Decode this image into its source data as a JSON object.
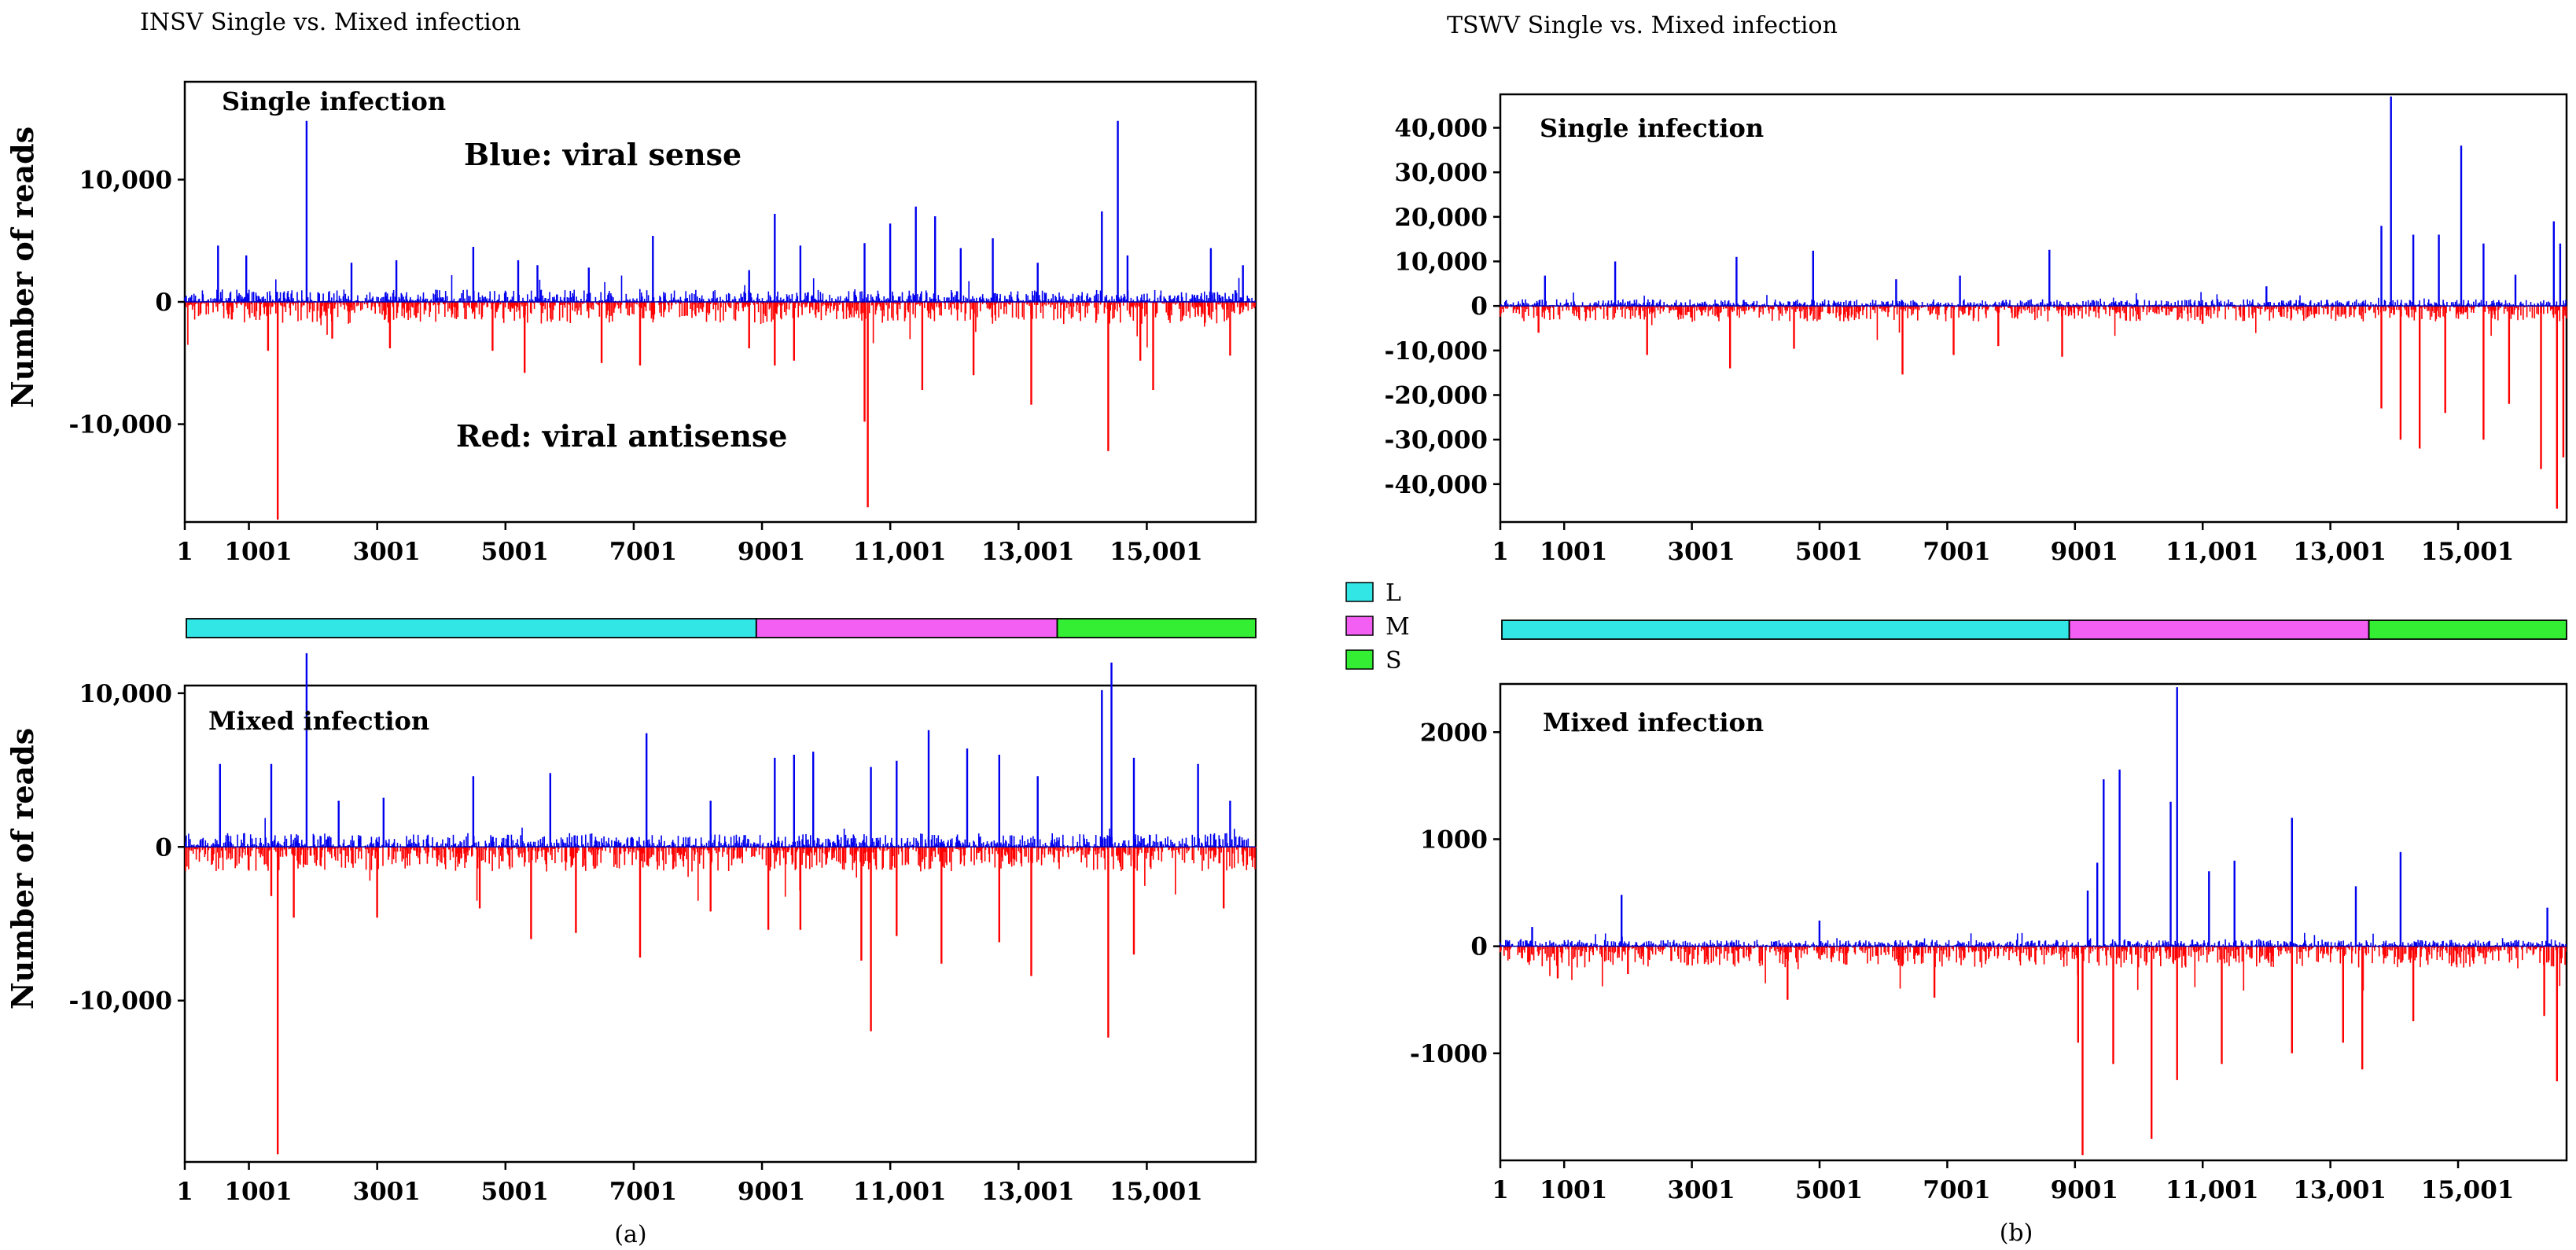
{
  "figure": {
    "left_title": "INSV Single vs. Mixed infection",
    "right_title": "TSWV Single vs. Mixed infection",
    "left_sublabel": "(a)",
    "right_sublabel": "(b)",
    "ylabel": "Number of reads"
  },
  "colors": {
    "sense": "#0000ee",
    "antisense": "#ff0000",
    "L": "#33e6e6",
    "M": "#f25ff2",
    "S": "#33ee33",
    "frame": "#000000"
  },
  "segment_legend": [
    {
      "key": "L",
      "label": "L"
    },
    {
      "key": "M",
      "label": "M"
    },
    {
      "key": "S",
      "label": "S"
    }
  ],
  "chart_data": [
    {
      "id": "insv-single",
      "type": "bar",
      "panel_label": "Single infection",
      "annotations": [
        "Blue: viral sense",
        "Red: viral antisense"
      ],
      "xlabel": "",
      "ylabel": "Number of reads",
      "xlim": [
        1,
        16700
      ],
      "ylim": [
        -18000,
        18000
      ],
      "xticks": [
        1,
        1001,
        3001,
        5001,
        7001,
        9001,
        11001,
        13001,
        15001
      ],
      "xtick_labels": [
        "1",
        "1001",
        "3001",
        "5001",
        "7001",
        "9001",
        "11,001",
        "13,001",
        "15,001"
      ],
      "yticks": [
        10000,
        0,
        -10000
      ],
      "ytick_labels": [
        "10,000",
        "0",
        "-10,000"
      ],
      "segments": [
        {
          "name": "L",
          "start": 1,
          "end": 8900
        },
        {
          "name": "M",
          "start": 8900,
          "end": 13600
        },
        {
          "name": "S",
          "start": 13600,
          "end": 16700
        }
      ],
      "series": [
        {
          "name": "viral sense",
          "points": [
            [
              520,
              4600
            ],
            [
              960,
              3800
            ],
            [
              1900,
              14800
            ],
            [
              2600,
              3200
            ],
            [
              3300,
              3400
            ],
            [
              4500,
              4500
            ],
            [
              5200,
              3400
            ],
            [
              5500,
              3000
            ],
            [
              6300,
              2800
            ],
            [
              7300,
              5400
            ],
            [
              8800,
              2600
            ],
            [
              9200,
              7200
            ],
            [
              9600,
              4600
            ],
            [
              10600,
              4800
            ],
            [
              11000,
              6400
            ],
            [
              11400,
              7800
            ],
            [
              11700,
              7000
            ],
            [
              12100,
              4400
            ],
            [
              12600,
              5200
            ],
            [
              13300,
              3200
            ],
            [
              14300,
              7400
            ],
            [
              14550,
              14800
            ],
            [
              14700,
              3800
            ],
            [
              16000,
              4400
            ],
            [
              16500,
              3000
            ]
          ],
          "baseline_peak": 1000
        },
        {
          "name": "viral antisense",
          "points": [
            [
              1450,
              -17800
            ],
            [
              1300,
              -4000
            ],
            [
              2300,
              -3000
            ],
            [
              3200,
              -3800
            ],
            [
              4800,
              -4000
            ],
            [
              5300,
              -5800
            ],
            [
              6500,
              -5000
            ],
            [
              7100,
              -5200
            ],
            [
              8800,
              -3800
            ],
            [
              9200,
              -5200
            ],
            [
              9500,
              -4800
            ],
            [
              10600,
              -9800
            ],
            [
              10650,
              -16800
            ],
            [
              11500,
              -7200
            ],
            [
              12300,
              -6000
            ],
            [
              13200,
              -8400
            ],
            [
              14400,
              -12200
            ],
            [
              14900,
              -4800
            ],
            [
              15100,
              -7200
            ],
            [
              16300,
              -4400
            ]
          ],
          "baseline_peak": 1800
        }
      ]
    },
    {
      "id": "insv-mixed",
      "type": "bar",
      "panel_label": "Mixed infection",
      "xlabel": "",
      "ylabel": "Number of reads",
      "xlim": [
        1,
        16700
      ],
      "ylim": [
        -20500,
        10500
      ],
      "xticks": [
        1,
        1001,
        3001,
        5001,
        7001,
        9001,
        11001,
        13001,
        15001
      ],
      "xtick_labels": [
        "1",
        "1001",
        "3001",
        "5001",
        "7001",
        "9001",
        "11,001",
        "13,001",
        "15,001"
      ],
      "yticks": [
        10000,
        0,
        -10000
      ],
      "ytick_labels": [
        "10,000",
        "0",
        "-10,000"
      ],
      "segments": [
        {
          "name": "L",
          "start": 1,
          "end": 8900
        },
        {
          "name": "M",
          "start": 8900,
          "end": 13600
        },
        {
          "name": "S",
          "start": 13600,
          "end": 16700
        }
      ],
      "series": [
        {
          "name": "viral sense",
          "points": [
            [
              550,
              5400
            ],
            [
              1350,
              5400
            ],
            [
              1900,
              12600
            ],
            [
              2400,
              3000
            ],
            [
              3100,
              3200
            ],
            [
              4500,
              4600
            ],
            [
              5700,
              4800
            ],
            [
              7200,
              7400
            ],
            [
              8200,
              3000
            ],
            [
              9200,
              5800
            ],
            [
              9500,
              6000
            ],
            [
              9800,
              6200
            ],
            [
              10700,
              5200
            ],
            [
              11100,
              5600
            ],
            [
              11600,
              7600
            ],
            [
              12200,
              6400
            ],
            [
              12700,
              6000
            ],
            [
              13300,
              4600
            ],
            [
              14300,
              10200
            ],
            [
              14450,
              12000
            ],
            [
              14800,
              5800
            ],
            [
              15800,
              5400
            ],
            [
              16300,
              3000
            ]
          ],
          "baseline_peak": 900
        },
        {
          "name": "viral antisense",
          "points": [
            [
              1450,
              -20000
            ],
            [
              1350,
              -3200
            ],
            [
              1700,
              -4600
            ],
            [
              3000,
              -4600
            ],
            [
              4600,
              -4000
            ],
            [
              5400,
              -6000
            ],
            [
              6100,
              -5600
            ],
            [
              7100,
              -7200
            ],
            [
              8200,
              -4200
            ],
            [
              9100,
              -5400
            ],
            [
              9600,
              -5400
            ],
            [
              10550,
              -7400
            ],
            [
              10700,
              -12000
            ],
            [
              11100,
              -5800
            ],
            [
              11800,
              -7600
            ],
            [
              12700,
              -6200
            ],
            [
              13200,
              -8400
            ],
            [
              14400,
              -12400
            ],
            [
              14800,
              -7000
            ],
            [
              16200,
              -4000
            ]
          ],
          "baseline_peak": 1600
        }
      ]
    },
    {
      "id": "tswv-single",
      "type": "bar",
      "panel_label": "Single infection",
      "xlabel": "",
      "ylabel": "",
      "xlim": [
        1,
        16700
      ],
      "ylim": [
        -48500,
        47500
      ],
      "xticks": [
        1,
        1001,
        3001,
        5001,
        7001,
        9001,
        11001,
        13001,
        15001
      ],
      "xtick_labels": [
        "1",
        "1001",
        "3001",
        "5001",
        "7001",
        "9001",
        "11,001",
        "13,001",
        "15,001"
      ],
      "yticks": [
        40000,
        30000,
        20000,
        10000,
        0,
        -10000,
        -20000,
        -30000,
        -40000
      ],
      "ytick_labels": [
        "40,000",
        "30,000",
        "20,000",
        "10,000",
        "0",
        "-10,000",
        "-20,000",
        "-30,000",
        "-40,000"
      ],
      "segments": [
        {
          "name": "L",
          "start": 1,
          "end": 8900
        },
        {
          "name": "M",
          "start": 8900,
          "end": 13600
        },
        {
          "name": "S",
          "start": 13600,
          "end": 16700
        }
      ],
      "series": [
        {
          "name": "viral sense",
          "points": [
            [
              700,
              6800
            ],
            [
              1800,
              10000
            ],
            [
              3700,
              11000
            ],
            [
              4900,
              12400
            ],
            [
              6200,
              6000
            ],
            [
              7200,
              6800
            ],
            [
              8600,
              12600
            ],
            [
              12000,
              4400
            ],
            [
              13800,
              18000
            ],
            [
              13950,
              47000
            ],
            [
              14300,
              16000
            ],
            [
              14700,
              16000
            ],
            [
              15050,
              36000
            ],
            [
              15400,
              14000
            ],
            [
              15900,
              7000
            ],
            [
              16500,
              19000
            ],
            [
              16600,
              14000
            ]
          ],
          "baseline_peak": 1500
        },
        {
          "name": "viral antisense",
          "points": [
            [
              600,
              -6000
            ],
            [
              2300,
              -11000
            ],
            [
              3600,
              -14000
            ],
            [
              4600,
              -9600
            ],
            [
              6300,
              -15400
            ],
            [
              7100,
              -11000
            ],
            [
              7800,
              -9000
            ],
            [
              8800,
              -11400
            ],
            [
              11000,
              -4000
            ],
            [
              13800,
              -23000
            ],
            [
              14100,
              -30000
            ],
            [
              14400,
              -32000
            ],
            [
              14800,
              -24000
            ],
            [
              15400,
              -30000
            ],
            [
              15800,
              -22000
            ],
            [
              16300,
              -36600
            ],
            [
              16550,
              -45500
            ],
            [
              16650,
              -34000
            ]
          ],
          "baseline_peak": 3500
        }
      ]
    },
    {
      "id": "tswv-mixed",
      "type": "bar",
      "panel_label": "Mixed infection",
      "xlabel": "",
      "ylabel": "",
      "xlim": [
        1,
        16700
      ],
      "ylim": [
        -2000,
        2450
      ],
      "xticks": [
        1,
        1001,
        3001,
        5001,
        7001,
        9001,
        11001,
        13001,
        15001
      ],
      "xtick_labels": [
        "1",
        "1001",
        "3001",
        "5001",
        "7001",
        "9001",
        "11,001",
        "13,001",
        "15,001"
      ],
      "yticks": [
        2000,
        1000,
        0,
        -1000
      ],
      "ytick_labels": [
        "2000",
        "1000",
        "0",
        "-1000"
      ],
      "segments": [
        {
          "name": "L",
          "start": 1,
          "end": 8900
        },
        {
          "name": "M",
          "start": 8900,
          "end": 13600
        },
        {
          "name": "S",
          "start": 13600,
          "end": 16700
        }
      ],
      "series": [
        {
          "name": "viral sense",
          "points": [
            [
              500,
              180
            ],
            [
              1900,
              480
            ],
            [
              5000,
              240
            ],
            [
              9200,
              520
            ],
            [
              9350,
              780
            ],
            [
              9450,
              1560
            ],
            [
              9700,
              1650
            ],
            [
              10500,
              1350
            ],
            [
              10600,
              2420
            ],
            [
              11100,
              700
            ],
            [
              11500,
              800
            ],
            [
              12400,
              1200
            ],
            [
              13400,
              560
            ],
            [
              14100,
              880
            ],
            [
              16400,
              360
            ]
          ],
          "baseline_peak": 60
        },
        {
          "name": "viral antisense",
          "points": [
            [
              900,
              -300
            ],
            [
              2000,
              -260
            ],
            [
              4500,
              -500
            ],
            [
              6800,
              -480
            ],
            [
              9050,
              -900
            ],
            [
              9120,
              -1950
            ],
            [
              9600,
              -1100
            ],
            [
              10200,
              -1800
            ],
            [
              10600,
              -1250
            ],
            [
              11300,
              -1100
            ],
            [
              12400,
              -1000
            ],
            [
              13200,
              -900
            ],
            [
              13500,
              -1150
            ],
            [
              14300,
              -700
            ],
            [
              16350,
              -650
            ],
            [
              16550,
              -1260
            ]
          ],
          "baseline_peak": 200
        }
      ]
    }
  ]
}
